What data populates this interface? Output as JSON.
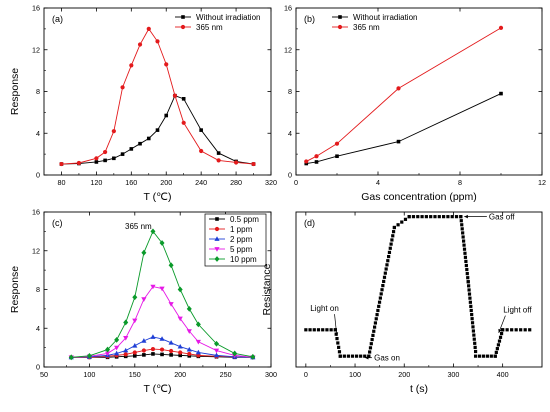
{
  "chart_data": [
    {
      "panel": "(a)",
      "type": "line",
      "xlabel": "T (℃)",
      "ylabel": "Response",
      "xlim": [
        60,
        320
      ],
      "ylim": [
        0,
        16
      ],
      "xticks": [
        80,
        120,
        160,
        200,
        240,
        280,
        320
      ],
      "yticks": [
        0,
        4,
        8,
        12,
        16
      ],
      "legend_position": "top-right",
      "series": [
        {
          "name": "Without irradiation",
          "color": "#000000",
          "marker": "square",
          "x": [
            80,
            100,
            120,
            130,
            140,
            150,
            160,
            170,
            180,
            190,
            200,
            210,
            220,
            240,
            260,
            280,
            300
          ],
          "y": [
            1.05,
            1.1,
            1.25,
            1.4,
            1.6,
            2.0,
            2.5,
            3.0,
            3.5,
            4.3,
            5.7,
            7.6,
            7.3,
            4.3,
            2.1,
            1.3,
            1.05
          ]
        },
        {
          "name": "365 nm",
          "color": "#e31a1c",
          "marker": "circle",
          "x": [
            80,
            100,
            120,
            130,
            140,
            150,
            160,
            170,
            180,
            190,
            200,
            210,
            220,
            240,
            260,
            280,
            300
          ],
          "y": [
            1.05,
            1.15,
            1.6,
            2.2,
            4.2,
            8.4,
            10.5,
            12.5,
            14.0,
            12.8,
            10.6,
            7.6,
            5.0,
            2.3,
            1.4,
            1.2,
            1.05
          ]
        }
      ]
    },
    {
      "panel": "(b)",
      "type": "line",
      "xlabel": "Gas concentration (ppm)",
      "ylabel": "",
      "xlim": [
        0,
        12
      ],
      "ylim": [
        0,
        16
      ],
      "xticks": [
        0,
        4,
        8,
        12
      ],
      "yticks": [
        0,
        4,
        8,
        12,
        16
      ],
      "legend_position": "top-left",
      "series": [
        {
          "name": "Without irradiation",
          "color": "#000000",
          "marker": "square",
          "x": [
            0.5,
            1,
            2,
            5,
            10
          ],
          "y": [
            1.1,
            1.25,
            1.8,
            3.2,
            7.8
          ]
        },
        {
          "name": "365 nm",
          "color": "#e31a1c",
          "marker": "circle",
          "x": [
            0.5,
            1,
            2,
            5,
            10
          ],
          "y": [
            1.3,
            1.8,
            3.0,
            8.3,
            14.1
          ]
        }
      ]
    },
    {
      "panel": "(c)",
      "type": "line",
      "xlabel": "T (℃)",
      "ylabel": "Response",
      "annotation": "365 nm",
      "xlim": [
        50,
        300
      ],
      "ylim": [
        0,
        16
      ],
      "xticks": [
        50,
        100,
        150,
        200,
        250,
        300
      ],
      "yticks": [
        0,
        4,
        8,
        12,
        16
      ],
      "legend_position": "top-right",
      "series": [
        {
          "name": "0.5 ppm",
          "color": "#000000",
          "marker": "square",
          "x": [
            80,
            100,
            120,
            130,
            140,
            150,
            160,
            170,
            180,
            190,
            200,
            210,
            220,
            240,
            260,
            280
          ],
          "y": [
            1.0,
            1.0,
            1.0,
            1.05,
            1.1,
            1.15,
            1.25,
            1.35,
            1.3,
            1.25,
            1.2,
            1.15,
            1.1,
            1.05,
            1.0,
            1.0
          ]
        },
        {
          "name": "1 ppm",
          "color": "#e31a1c",
          "marker": "circle",
          "x": [
            80,
            100,
            120,
            130,
            140,
            150,
            160,
            170,
            180,
            190,
            200,
            210,
            220,
            240,
            260,
            280
          ],
          "y": [
            1.0,
            1.0,
            1.1,
            1.2,
            1.3,
            1.5,
            1.7,
            1.85,
            1.8,
            1.65,
            1.5,
            1.35,
            1.2,
            1.1,
            1.05,
            1.0
          ]
        },
        {
          "name": "2 ppm",
          "color": "#1f3fd6",
          "marker": "triangle-up",
          "x": [
            80,
            100,
            120,
            130,
            140,
            150,
            160,
            170,
            180,
            190,
            200,
            210,
            220,
            240,
            260,
            280
          ],
          "y": [
            1.0,
            1.05,
            1.2,
            1.4,
            1.7,
            2.2,
            2.7,
            3.1,
            2.9,
            2.5,
            2.1,
            1.8,
            1.5,
            1.2,
            1.05,
            1.0
          ]
        },
        {
          "name": "5 ppm",
          "color": "#e619e6",
          "marker": "triangle-down",
          "x": [
            80,
            100,
            120,
            130,
            140,
            150,
            160,
            170,
            180,
            190,
            200,
            210,
            220,
            240,
            260,
            280
          ],
          "y": [
            1.0,
            1.1,
            1.4,
            2.0,
            3.0,
            4.8,
            7.0,
            8.3,
            8.1,
            6.5,
            5.0,
            3.7,
            2.6,
            1.7,
            1.2,
            1.0
          ]
        },
        {
          "name": "10 ppm",
          "color": "#0a9a2a",
          "marker": "diamond",
          "x": [
            80,
            100,
            120,
            130,
            140,
            150,
            160,
            170,
            180,
            190,
            200,
            210,
            220,
            240,
            260,
            280
          ],
          "y": [
            1.0,
            1.15,
            1.8,
            2.8,
            4.6,
            7.2,
            11.8,
            14.0,
            12.8,
            10.5,
            8.0,
            6.0,
            4.4,
            2.4,
            1.4,
            1.05
          ]
        }
      ]
    },
    {
      "panel": "(d)",
      "type": "scatter",
      "xlabel": "t (s)",
      "ylabel": "Resistance",
      "xlim": [
        -20,
        480
      ],
      "ylim": [
        0,
        1
      ],
      "xticks": [
        0,
        100,
        200,
        300,
        400
      ],
      "yticks": [],
      "segments": [
        {
          "x0": 0,
          "x1": 60,
          "y0": 0.24,
          "y1": 0.24
        },
        {
          "x0": 60,
          "x1": 70,
          "y0": 0.24,
          "y1": 0.07
        },
        {
          "x0": 70,
          "x1": 128,
          "y0": 0.07,
          "y1": 0.07
        },
        {
          "x0": 128,
          "x1": 180,
          "y0": 0.07,
          "y1": 0.9
        },
        {
          "x0": 180,
          "x1": 210,
          "y0": 0.9,
          "y1": 0.97
        },
        {
          "x0": 210,
          "x1": 315,
          "y0": 0.97,
          "y1": 0.97
        },
        {
          "x0": 315,
          "x1": 330,
          "y0": 0.97,
          "y1": 0.55
        },
        {
          "x0": 330,
          "x1": 345,
          "y0": 0.55,
          "y1": 0.1
        },
        {
          "x0": 345,
          "x1": 385,
          "y0": 0.07,
          "y1": 0.07
        },
        {
          "x0": 385,
          "x1": 400,
          "y0": 0.07,
          "y1": 0.24
        },
        {
          "x0": 400,
          "x1": 455,
          "y0": 0.24,
          "y1": 0.24
        }
      ],
      "annotations": [
        {
          "text": "Light on",
          "x": 38,
          "y": 0.38
        },
        {
          "text": "Gas on",
          "x": 165,
          "y": 0.06
        },
        {
          "text": "Gas off",
          "x": 372,
          "y": 0.97
        },
        {
          "text": "Light off",
          "x": 430,
          "y": 0.37
        }
      ]
    }
  ]
}
